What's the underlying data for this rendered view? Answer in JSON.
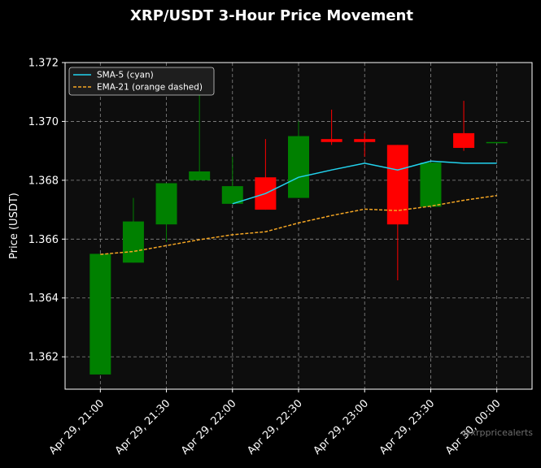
{
  "chart_data": {
    "type": "candlestick",
    "title": "XRP/USDT 3-Hour Price Movement",
    "ylabel": "Price (USDT)",
    "xlabel": "",
    "ylim": [
      1.3609,
      1.372
    ],
    "grid": true,
    "legend_placement": "top-left",
    "watermark": "@xrppricealerts",
    "x_ticks": [
      "Apr 29, 21:00",
      "Apr 29, 21:30",
      "Apr 29, 22:00",
      "Apr 29, 22:30",
      "Apr 29, 23:00",
      "Apr 29, 23:30",
      "Apr 30, 00:00"
    ],
    "y_ticks": [
      "1.362",
      "1.364",
      "1.366",
      "1.368",
      "1.370",
      "1.372"
    ],
    "y_tick_values": [
      1.362,
      1.364,
      1.366,
      1.368,
      1.37,
      1.372
    ],
    "time_minutes": [
      0,
      15,
      30,
      45,
      60,
      75,
      90,
      105,
      120,
      135,
      150,
      165,
      180
    ],
    "x_range_minutes": [
      -16,
      196
    ],
    "x_tick_minutes": [
      0,
      30,
      60,
      90,
      120,
      150,
      180
    ],
    "candles": [
      {
        "open": 1.3614,
        "high": 1.3655,
        "low": 1.3614,
        "close": 1.3655
      },
      {
        "open": 1.3652,
        "high": 1.3674,
        "low": 1.3652,
        "close": 1.3666
      },
      {
        "open": 1.3665,
        "high": 1.3679,
        "low": 1.3659,
        "close": 1.3679
      },
      {
        "open": 1.368,
        "high": 1.3712,
        "low": 1.368,
        "close": 1.3683
      },
      {
        "open": 1.3672,
        "high": 1.3688,
        "low": 1.3672,
        "close": 1.3678
      },
      {
        "open": 1.3681,
        "high": 1.3694,
        "low": 1.367,
        "close": 1.367
      },
      {
        "open": 1.3674,
        "high": 1.37,
        "low": 1.3674,
        "close": 1.3695
      },
      {
        "open": 1.3694,
        "high": 1.3704,
        "low": 1.3692,
        "close": 1.3693
      },
      {
        "open": 1.3694,
        "high": 1.3696,
        "low": 1.3688,
        "close": 1.3693
      },
      {
        "open": 1.3692,
        "high": 1.3692,
        "low": 1.3646,
        "close": 1.3665
      },
      {
        "open": 1.3671,
        "high": 1.3686,
        "low": 1.3671,
        "close": 1.3686
      },
      {
        "open": 1.3696,
        "high": 1.3707,
        "low": 1.369,
        "close": 1.3691
      },
      {
        "open": 1.3693,
        "high": 1.3693,
        "low": 1.3693,
        "close": 1.3693
      }
    ],
    "series": [
      {
        "name": "SMA-5 (cyan)",
        "color": "#22d3ee",
        "dash": false,
        "start_index": 4,
        "values": [
          null,
          null,
          null,
          null,
          1.3672,
          1.36755,
          1.3681,
          1.36835,
          1.36858,
          1.36835,
          1.36865,
          1.36858,
          1.36858
        ]
      },
      {
        "name": "EMA-21 (orange dashed)",
        "color": "#f5a623",
        "dash": true,
        "start_index": 0,
        "values": [
          1.36548,
          1.36558,
          1.36578,
          1.36598,
          1.36615,
          1.36625,
          1.36655,
          1.3668,
          1.36702,
          1.36697,
          1.36712,
          1.36732,
          1.36748
        ]
      }
    ],
    "colors": {
      "up": "#008000",
      "down": "#ff0000",
      "grid": "#8a8a8a",
      "plot_bg": "#0d0d0d",
      "figure_bg": "#000000"
    }
  }
}
